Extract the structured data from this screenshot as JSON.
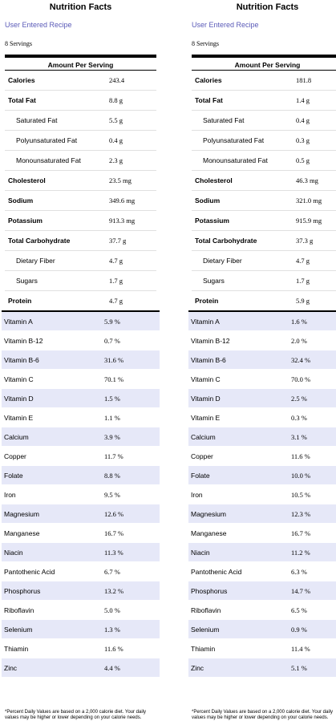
{
  "panels": [
    {
      "title": "Nutrition Facts",
      "subtitle": "User Entered Recipe",
      "servings": "8 Servings",
      "amount_per_serving": "Amount Per Serving",
      "nutrients": [
        {
          "label": "Calories",
          "value": "243.4",
          "type": "main"
        },
        {
          "label": "Total Fat",
          "value": "8.8 g",
          "type": "main"
        },
        {
          "label": "Saturated Fat",
          "value": "5.5 g",
          "type": "sub"
        },
        {
          "label": "Polyunsaturated Fat",
          "value": "0.4 g",
          "type": "sub"
        },
        {
          "label": "Monounsaturated Fat",
          "value": "2.3 g",
          "type": "sub"
        },
        {
          "label": "Cholesterol",
          "value": "23.5 mg",
          "type": "main"
        },
        {
          "label": "Sodium",
          "value": "349.6 mg",
          "type": "main"
        },
        {
          "label": "Potassium",
          "value": "913.3 mg",
          "type": "main"
        },
        {
          "label": "Total Carbohydrate",
          "value": "37.7 g",
          "type": "main"
        },
        {
          "label": "Dietary Fiber",
          "value": "4.7 g",
          "type": "sub"
        },
        {
          "label": "Sugars",
          "value": "1.7 g",
          "type": "sub"
        },
        {
          "label": "Protein",
          "value": "4.7 g",
          "type": "main"
        }
      ],
      "vitamins": [
        {
          "label": "Vitamin A",
          "value": "5.9 %"
        },
        {
          "label": "Vitamin B-12",
          "value": "0.7 %"
        },
        {
          "label": "Vitamin B-6",
          "value": "31.6 %"
        },
        {
          "label": "Vitamin C",
          "value": "70.1 %"
        },
        {
          "label": "Vitamin D",
          "value": "1.5 %"
        },
        {
          "label": "Vitamin E",
          "value": "1.1 %"
        },
        {
          "label": "Calcium",
          "value": "3.9 %"
        },
        {
          "label": "Copper",
          "value": "11.7 %"
        },
        {
          "label": "Folate",
          "value": "8.8 %"
        },
        {
          "label": "Iron",
          "value": "9.5 %"
        },
        {
          "label": "Magnesium",
          "value": "12.6 %"
        },
        {
          "label": "Manganese",
          "value": "16.7 %"
        },
        {
          "label": "Niacin",
          "value": "11.3 %"
        },
        {
          "label": "Pantothenic Acid",
          "value": "6.7 %"
        },
        {
          "label": "Phosphorus",
          "value": "13.2 %"
        },
        {
          "label": "Riboflavin",
          "value": "5.0 %"
        },
        {
          "label": "Selenium",
          "value": "1.3 %"
        },
        {
          "label": "Thiamin",
          "value": "11.6 %"
        },
        {
          "label": "Zinc",
          "value": "4.4 %"
        }
      ],
      "footnote": "*Percent Daily Values are based on a 2,000 calorie diet. Your daily values may be higher or lower depending on your calorie needs."
    },
    {
      "title": "Nutrition Facts",
      "subtitle": "User Entered Recipe",
      "servings": "8 Servings",
      "amount_per_serving": "Amount Per Serving",
      "nutrients": [
        {
          "label": "Calories",
          "value": "181.8",
          "type": "main"
        },
        {
          "label": "Total Fat",
          "value": "1.4 g",
          "type": "main"
        },
        {
          "label": "Saturated Fat",
          "value": "0.4 g",
          "type": "sub"
        },
        {
          "label": "Polyunsaturated Fat",
          "value": "0.3 g",
          "type": "sub"
        },
        {
          "label": "Monounsaturated Fat",
          "value": "0.5 g",
          "type": "sub"
        },
        {
          "label": "Cholesterol",
          "value": "46.3 mg",
          "type": "main"
        },
        {
          "label": "Sodium",
          "value": "321.0 mg",
          "type": "main"
        },
        {
          "label": "Potassium",
          "value": "915.9 mg",
          "type": "main"
        },
        {
          "label": "Total Carbohydrate",
          "value": "37.3 g",
          "type": "main"
        },
        {
          "label": "Dietary Fiber",
          "value": "4.7 g",
          "type": "sub"
        },
        {
          "label": "Sugars",
          "value": "1.7 g",
          "type": "sub"
        },
        {
          "label": "Protein",
          "value": "5.9 g",
          "type": "main"
        }
      ],
      "vitamins": [
        {
          "label": "Vitamin A",
          "value": "1.6 %"
        },
        {
          "label": "Vitamin B-12",
          "value": "2.0 %"
        },
        {
          "label": "Vitamin B-6",
          "value": "32.4 %"
        },
        {
          "label": "Vitamin C",
          "value": "70.0 %"
        },
        {
          "label": "Vitamin D",
          "value": "2.5 %"
        },
        {
          "label": "Vitamin E",
          "value": "0.3 %"
        },
        {
          "label": "Calcium",
          "value": "3.1 %"
        },
        {
          "label": "Copper",
          "value": "11.6 %"
        },
        {
          "label": "Folate",
          "value": "10.0 %"
        },
        {
          "label": "Iron",
          "value": "10.5 %"
        },
        {
          "label": "Magnesium",
          "value": "12.3 %"
        },
        {
          "label": "Manganese",
          "value": "16.7 %"
        },
        {
          "label": "Niacin",
          "value": "11.2 %"
        },
        {
          "label": "Pantothenic Acid",
          "value": "6.3 %"
        },
        {
          "label": "Phosphorus",
          "value": "14.7 %"
        },
        {
          "label": "Riboflavin",
          "value": "6.5 %"
        },
        {
          "label": "Selenium",
          "value": "0.9 %"
        },
        {
          "label": "Thiamin",
          "value": "11.4 %"
        },
        {
          "label": "Zinc",
          "value": "5.1 %"
        }
      ],
      "footnote": "*Percent Daily Values are based on a 2,000 calorie diet. Your daily values may be higher or lower depending on your calorie needs."
    }
  ],
  "colors": {
    "subtitle": "#5a5ab8",
    "shade": "#e6e8f8"
  }
}
